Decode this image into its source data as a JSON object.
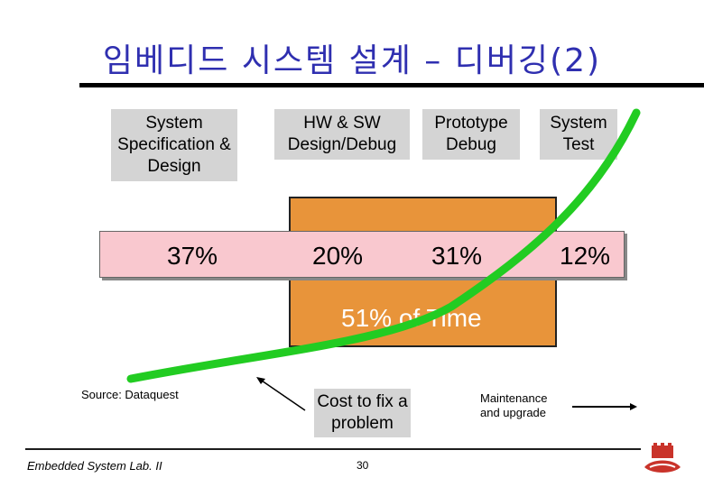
{
  "title": "임베디드 시스템 설계 – 디버깅(2)",
  "phases": [
    "System Specification & Design",
    "HW & SW Design/Debug",
    "Prototype Debug",
    "System Test"
  ],
  "percentages": [
    "37%",
    "20%",
    "31%",
    "12%"
  ],
  "time_label": "51% of Time",
  "source": "Source:  Dataquest",
  "cost_label": "Cost to fix a problem",
  "maintenance_label": "Maintenance and upgrade",
  "footer": {
    "lab": "Embedded System Lab. II",
    "page": "30"
  },
  "colors": {
    "title": "#2f2fb0",
    "curve": "#22cc22",
    "orange_box": "#e8943a",
    "pink_bar": "#f9c8cf",
    "phase_box": "#d4d4d4"
  },
  "icons": [
    "logo-icon"
  ]
}
